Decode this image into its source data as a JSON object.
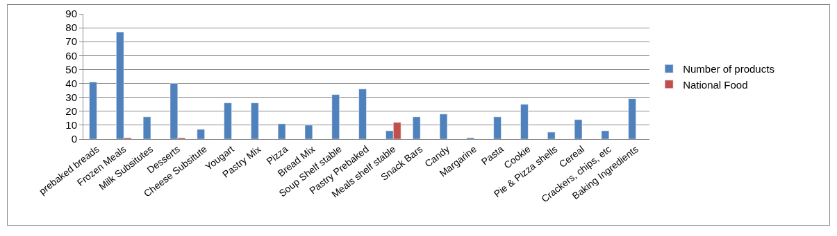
{
  "chart_data": {
    "type": "bar",
    "categories": [
      "prebaked breads",
      "Frozen Meals",
      "Milk Subsitutes",
      "Desserts",
      "Cheese Subsitute",
      "Yougart",
      "Pastry Mix",
      "Pizza",
      "Bread Mix",
      "Soup Shelf stable",
      "Pastry Prebaked",
      "Meals shelf stable",
      "Snack Bars",
      "Candy",
      "Margarine",
      "Pasta",
      "Cookie",
      "Pie & Pizza shells",
      "Cereal",
      "Crackers, chips, etc",
      "Baking Ingredients"
    ],
    "series": [
      {
        "name": "Number of products",
        "color": "#4f81bd",
        "values": [
          41,
          77,
          16,
          40,
          7,
          26,
          26,
          11,
          10,
          32,
          36,
          6,
          16,
          18,
          1,
          16,
          25,
          5,
          14,
          6,
          29
        ]
      },
      {
        "name": "National Food",
        "color": "#c0504d",
        "values": [
          null,
          1,
          null,
          1,
          null,
          null,
          null,
          null,
          null,
          null,
          null,
          12,
          null,
          null,
          null,
          null,
          null,
          null,
          null,
          null,
          null
        ]
      }
    ],
    "ylim": [
      0,
      90
    ],
    "yticks": [
      0,
      10,
      20,
      30,
      40,
      50,
      60,
      70,
      80,
      90
    ],
    "grid": "y",
    "legend": "right"
  }
}
